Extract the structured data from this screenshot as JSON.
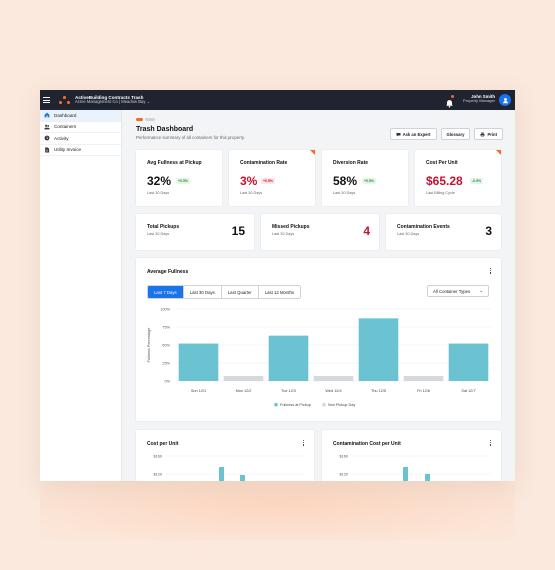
{
  "app": {
    "name": "ActiveBuilding Contracts Trash",
    "org": "Acme Management Co | Meadow Bay"
  },
  "user": {
    "name": "John Smith",
    "role": "Property Manager"
  },
  "sidebar": {
    "items": [
      {
        "label": "Dashboard",
        "icon": "home-icon"
      },
      {
        "label": "Containers",
        "icon": "people-icon"
      },
      {
        "label": "Activity",
        "icon": "activity-icon"
      },
      {
        "label": "Utility Invoice",
        "icon": "document-icon"
      }
    ]
  },
  "page": {
    "title": "Trash Dashboard",
    "subtitle": "Performance summary of all containers for this property."
  },
  "actions": {
    "ask": "Ask an Expert",
    "glossary": "Glossary",
    "print": "Print"
  },
  "kpis": [
    {
      "label": "Avg Fullness at Pickup",
      "value": "32%",
      "change": "+0.5%",
      "period": "Last 30 Days"
    },
    {
      "label": "Contamination Rate",
      "value": "3%",
      "change": "+0.5%",
      "period": "Last 30 Days"
    },
    {
      "label": "Diversion Rate",
      "value": "58%",
      "change": "+0.5%",
      "period": "Last 30 Days"
    },
    {
      "label": "Cost Per Unit",
      "value": "$65.28",
      "change": "-0.5%",
      "period": "Last Billing Cycle"
    }
  ],
  "stats": [
    {
      "label": "Total Pickups",
      "period": "Last 30 Days",
      "value": "15"
    },
    {
      "label": "Missed Pickups",
      "period": "Last 30 Days",
      "value": "4"
    },
    {
      "label": "Contamination Events",
      "period": "Last 30 Days",
      "value": "3"
    }
  ],
  "fullness": {
    "title": "Average Fullness",
    "tabs": [
      "Last 7 Days",
      "Last 30 Days",
      "Last Quarter",
      "Last 12 Months"
    ],
    "filter": "All Container Types"
  },
  "bottom_cards": {
    "left": "Cost per Unit",
    "right": "Contamination Cost per Unit"
  },
  "colors": {
    "accent": "#1a73e8",
    "bar": "#6bc3d1",
    "nonpickup": "#d5d8dc",
    "alert": "#c8102e",
    "brand": "#f26a2c"
  },
  "chart_data": [
    {
      "type": "bar",
      "categories": [
        "Sun 12/1",
        "Mon 12/2",
        "Tue 12/3",
        "Wed 12/4",
        "Thu 12/5",
        "Fri 12/6",
        "Sat 12/7"
      ],
      "series": [
        {
          "name": "Fullness at Pickup",
          "values": [
            52,
            null,
            63,
            null,
            87,
            null,
            52
          ]
        },
        {
          "name": "Non Pickup Day",
          "values": [
            null,
            7,
            null,
            7,
            null,
            7,
            null
          ]
        }
      ],
      "ylabel": "Fullness Percentage",
      "yticks": [
        "100%",
        "75%",
        "50%",
        "25%",
        "0%"
      ],
      "ylim": [
        0,
        100
      ],
      "legend": "bottom"
    },
    {
      "type": "bar",
      "yticks": [
        "$160",
        "$120"
      ]
    },
    {
      "type": "bar",
      "yticks": [
        "$160",
        "$120"
      ]
    }
  ]
}
